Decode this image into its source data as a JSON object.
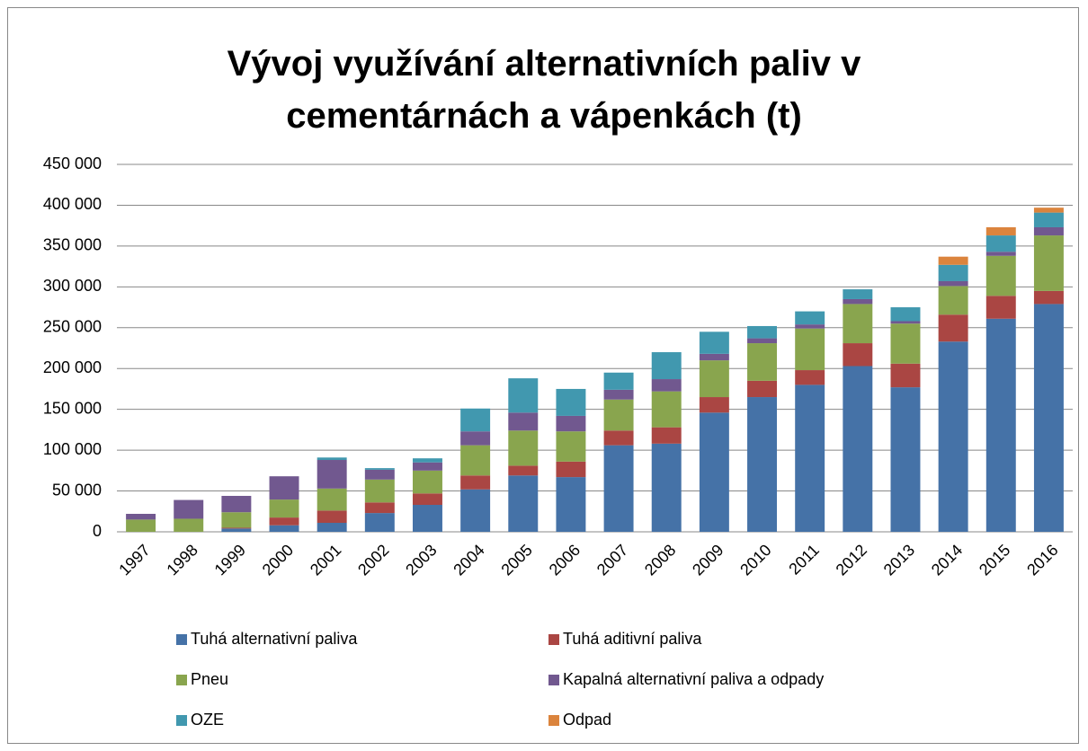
{
  "chart_data": {
    "type": "stacked_bar",
    "title": "Vývoj využívání alternativních paliv v cementárnách a vápenkách (t)",
    "categories": [
      "1997",
      "1998",
      "1999",
      "2000",
      "2001",
      "2002",
      "2003",
      "2004",
      "2005",
      "2006",
      "2007",
      "2008",
      "2009",
      "2010",
      "2011",
      "2012",
      "2013",
      "2014",
      "2015",
      "2016"
    ],
    "series": [
      {
        "name": "Tuhá alternativní paliva",
        "color": "#4572a7",
        "values": [
          0,
          0,
          4000,
          8000,
          11000,
          23000,
          33000,
          52000,
          69000,
          67000,
          106000,
          108000,
          146000,
          165000,
          180000,
          203000,
          177000,
          233000,
          261000,
          279000
        ]
      },
      {
        "name": "Tuhá aditivní paliva",
        "color": "#aa4643",
        "values": [
          0,
          0,
          1000,
          9500,
          15000,
          13000,
          14000,
          17000,
          12000,
          19000,
          18000,
          20000,
          19000,
          20000,
          18000,
          28000,
          29000,
          33000,
          28000,
          16000
        ]
      },
      {
        "name": "Pneu",
        "color": "#89a54e",
        "values": [
          15000,
          16000,
          19000,
          22000,
          27000,
          28000,
          28000,
          37000,
          43000,
          37000,
          38000,
          44000,
          45000,
          46000,
          51000,
          48000,
          49000,
          35000,
          49000,
          68000
        ]
      },
      {
        "name": "Kapalná alternativní paliva a odpady",
        "color": "#71588f",
        "values": [
          7000,
          23000,
          20000,
          28500,
          35000,
          12000,
          10000,
          17000,
          22000,
          19000,
          12000,
          15000,
          8000,
          6000,
          5000,
          6000,
          3000,
          6000,
          5000,
          10000
        ]
      },
      {
        "name": "OZE",
        "color": "#4198af",
        "values": [
          0,
          0,
          0,
          0,
          3000,
          2000,
          5000,
          28000,
          42000,
          33000,
          21000,
          33000,
          27000,
          15000,
          16000,
          12000,
          17000,
          20000,
          20000,
          18000
        ]
      },
      {
        "name": "Odpad",
        "color": "#db843d",
        "values": [
          0,
          0,
          0,
          0,
          0,
          0,
          0,
          0,
          0,
          0,
          0,
          0,
          0,
          0,
          0,
          0,
          0,
          10000,
          10000,
          6000
        ]
      }
    ],
    "ylim": [
      0,
      450000
    ],
    "yticks": [
      0,
      {
        "value": 50000,
        "label": "50 000"
      },
      {
        "value": 100000,
        "label": "100 000"
      },
      {
        "value": 150000,
        "label": "150 000"
      },
      {
        "value": 200000,
        "label": "200 000"
      },
      {
        "value": 250000,
        "label": "250 000"
      },
      {
        "value": 300000,
        "label": "300 000"
      },
      {
        "value": 350000,
        "label": "350 000"
      },
      {
        "value": 400000,
        "label": "400 000"
      },
      {
        "value": 450000,
        "label": "450 000"
      }
    ],
    "grid": true
  }
}
